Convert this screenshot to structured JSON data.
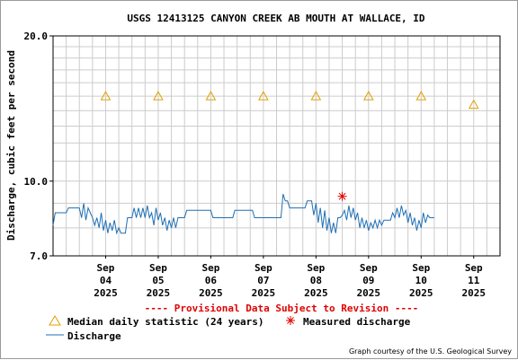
{
  "chart_data": {
    "type": "line",
    "title": "USGS 12413125 CANYON CREEK AB MOUTH AT WALLACE, ID",
    "ylabel": "Discharge, cubic feet per second",
    "xlabel": "",
    "yscale": "log",
    "ylim": [
      7.0,
      20.0
    ],
    "y_ticks": [
      "7.0",
      "10.0",
      "20.0"
    ],
    "xlim": [
      "2025-09-03T12:00",
      "2025-09-12T00:00"
    ],
    "x_ticks": [
      {
        "date": "2025-09-04",
        "lines": [
          "Sep",
          "04",
          "2025"
        ]
      },
      {
        "date": "2025-09-05",
        "lines": [
          "Sep",
          "05",
          "2025"
        ]
      },
      {
        "date": "2025-09-06",
        "lines": [
          "Sep",
          "06",
          "2025"
        ]
      },
      {
        "date": "2025-09-07",
        "lines": [
          "Sep",
          "07",
          "2025"
        ]
      },
      {
        "date": "2025-09-08",
        "lines": [
          "Sep",
          "08",
          "2025"
        ]
      },
      {
        "date": "2025-09-09",
        "lines": [
          "Sep",
          "09",
          "2025"
        ]
      },
      {
        "date": "2025-09-10",
        "lines": [
          "Sep",
          "10",
          "2025"
        ]
      },
      {
        "date": "2025-09-11",
        "lines": [
          "Sep",
          "11",
          "2025"
        ]
      }
    ],
    "grid": true,
    "legend_position": "bottom",
    "annotation": "---- Provisional Data Subject to Revision ----",
    "series": [
      {
        "name": "Median daily statistic (24 years)",
        "type": "scatter",
        "marker": "triangle",
        "color": "#e0a000",
        "points": [
          {
            "x": "2025-09-04T12:00",
            "y": 15.0
          },
          {
            "x": "2025-09-05T12:00",
            "y": 15.0
          },
          {
            "x": "2025-09-06T12:00",
            "y": 15.0
          },
          {
            "x": "2025-09-07T12:00",
            "y": 15.0
          },
          {
            "x": "2025-09-08T12:00",
            "y": 15.0
          },
          {
            "x": "2025-09-09T12:00",
            "y": 15.0
          },
          {
            "x": "2025-09-10T12:00",
            "y": 15.0
          },
          {
            "x": "2025-09-11T12:00",
            "y": 14.4
          }
        ]
      },
      {
        "name": "Measured discharge",
        "type": "scatter",
        "marker": "asterisk",
        "color": "#e00000",
        "points": [
          {
            "x": "2025-09-09T00:00",
            "y": 9.3
          }
        ]
      },
      {
        "name": "Discharge",
        "type": "line",
        "color": "#1f6fb5",
        "points": [
          {
            "x": "2025-09-03T12:00",
            "y": 8.1
          },
          {
            "x": "2025-09-03T13:00",
            "y": 8.6
          },
          {
            "x": "2025-09-03T18:00",
            "y": 8.6
          },
          {
            "x": "2025-09-03T19:00",
            "y": 8.8
          },
          {
            "x": "2025-09-04T00:00",
            "y": 8.8
          },
          {
            "x": "2025-09-04T01:00",
            "y": 8.4
          },
          {
            "x": "2025-09-04T02:00",
            "y": 9.0
          },
          {
            "x": "2025-09-04T03:00",
            "y": 8.3
          },
          {
            "x": "2025-09-04T04:00",
            "y": 8.8
          },
          {
            "x": "2025-09-04T05:00",
            "y": 8.6
          },
          {
            "x": "2025-09-04T06:00",
            "y": 8.4
          },
          {
            "x": "2025-09-04T07:00",
            "y": 8.1
          },
          {
            "x": "2025-09-04T08:00",
            "y": 8.4
          },
          {
            "x": "2025-09-04T09:00",
            "y": 8.0
          },
          {
            "x": "2025-09-04T10:00",
            "y": 8.6
          },
          {
            "x": "2025-09-04T11:00",
            "y": 7.9
          },
          {
            "x": "2025-09-04T12:00",
            "y": 8.3
          },
          {
            "x": "2025-09-04T13:00",
            "y": 7.8
          },
          {
            "x": "2025-09-04T14:00",
            "y": 8.2
          },
          {
            "x": "2025-09-04T15:00",
            "y": 7.9
          },
          {
            "x": "2025-09-04T16:00",
            "y": 8.3
          },
          {
            "x": "2025-09-04T17:00",
            "y": 7.8
          },
          {
            "x": "2025-09-04T18:00",
            "y": 8.0
          },
          {
            "x": "2025-09-04T19:00",
            "y": 7.8
          },
          {
            "x": "2025-09-04T21:00",
            "y": 7.8
          },
          {
            "x": "2025-09-04T22:00",
            "y": 8.4
          },
          {
            "x": "2025-09-05T00:00",
            "y": 8.4
          },
          {
            "x": "2025-09-05T01:00",
            "y": 8.8
          },
          {
            "x": "2025-09-05T02:00",
            "y": 8.4
          },
          {
            "x": "2025-09-05T03:00",
            "y": 8.8
          },
          {
            "x": "2025-09-05T04:00",
            "y": 8.4
          },
          {
            "x": "2025-09-05T05:00",
            "y": 8.8
          },
          {
            "x": "2025-09-05T06:00",
            "y": 8.4
          },
          {
            "x": "2025-09-05T07:00",
            "y": 8.9
          },
          {
            "x": "2025-09-05T08:00",
            "y": 8.4
          },
          {
            "x": "2025-09-05T09:00",
            "y": 8.6
          },
          {
            "x": "2025-09-05T10:00",
            "y": 8.1
          },
          {
            "x": "2025-09-05T11:00",
            "y": 8.8
          },
          {
            "x": "2025-09-05T12:00",
            "y": 8.3
          },
          {
            "x": "2025-09-05T13:00",
            "y": 8.6
          },
          {
            "x": "2025-09-05T14:00",
            "y": 8.1
          },
          {
            "x": "2025-09-05T15:00",
            "y": 8.4
          },
          {
            "x": "2025-09-05T16:00",
            "y": 7.9
          },
          {
            "x": "2025-09-05T17:00",
            "y": 8.3
          },
          {
            "x": "2025-09-05T18:00",
            "y": 8.0
          },
          {
            "x": "2025-09-05T19:00",
            "y": 8.4
          },
          {
            "x": "2025-09-05T20:00",
            "y": 8.0
          },
          {
            "x": "2025-09-05T21:00",
            "y": 8.4
          },
          {
            "x": "2025-09-06T00:00",
            "y": 8.4
          },
          {
            "x": "2025-09-06T01:00",
            "y": 8.7
          },
          {
            "x": "2025-09-06T12:00",
            "y": 8.7
          },
          {
            "x": "2025-09-06T13:00",
            "y": 8.4
          },
          {
            "x": "2025-09-06T22:00",
            "y": 8.4
          },
          {
            "x": "2025-09-06T23:00",
            "y": 8.7
          },
          {
            "x": "2025-09-07T07:00",
            "y": 8.7
          },
          {
            "x": "2025-09-07T08:00",
            "y": 8.4
          },
          {
            "x": "2025-09-07T20:00",
            "y": 8.4
          },
          {
            "x": "2025-09-07T21:00",
            "y": 9.4
          },
          {
            "x": "2025-09-07T22:00",
            "y": 9.1
          },
          {
            "x": "2025-09-07T23:00",
            "y": 9.1
          },
          {
            "x": "2025-09-08T00:00",
            "y": 8.8
          },
          {
            "x": "2025-09-08T07:00",
            "y": 8.8
          },
          {
            "x": "2025-09-08T08:00",
            "y": 9.1
          },
          {
            "x": "2025-09-08T10:00",
            "y": 9.1
          },
          {
            "x": "2025-09-08T11:00",
            "y": 8.5
          },
          {
            "x": "2025-09-08T12:00",
            "y": 9.0
          },
          {
            "x": "2025-09-08T13:00",
            "y": 8.2
          },
          {
            "x": "2025-09-08T14:00",
            "y": 8.8
          },
          {
            "x": "2025-09-08T15:00",
            "y": 8.0
          },
          {
            "x": "2025-09-08T16:00",
            "y": 8.7
          },
          {
            "x": "2025-09-08T17:00",
            "y": 7.9
          },
          {
            "x": "2025-09-08T18:00",
            "y": 8.4
          },
          {
            "x": "2025-09-08T19:00",
            "y": 7.8
          },
          {
            "x": "2025-09-08T20:00",
            "y": 8.2
          },
          {
            "x": "2025-09-08T21:00",
            "y": 7.8
          },
          {
            "x": "2025-09-08T22:00",
            "y": 8.4
          },
          {
            "x": "2025-09-08T23:00",
            "y": 8.4
          },
          {
            "x": "2025-09-09T00:00",
            "y": 8.5
          },
          {
            "x": "2025-09-09T01:00",
            "y": 8.7
          },
          {
            "x": "2025-09-09T02:00",
            "y": 8.3
          },
          {
            "x": "2025-09-09T03:00",
            "y": 8.9
          },
          {
            "x": "2025-09-09T04:00",
            "y": 8.4
          },
          {
            "x": "2025-09-09T05:00",
            "y": 8.8
          },
          {
            "x": "2025-09-09T06:00",
            "y": 8.3
          },
          {
            "x": "2025-09-09T07:00",
            "y": 8.6
          },
          {
            "x": "2025-09-09T08:00",
            "y": 8.0
          },
          {
            "x": "2025-09-09T09:00",
            "y": 8.4
          },
          {
            "x": "2025-09-09T10:00",
            "y": 8.0
          },
          {
            "x": "2025-09-09T11:00",
            "y": 8.3
          },
          {
            "x": "2025-09-09T12:00",
            "y": 7.9
          },
          {
            "x": "2025-09-09T13:00",
            "y": 8.2
          },
          {
            "x": "2025-09-09T14:00",
            "y": 8.0
          },
          {
            "x": "2025-09-09T15:00",
            "y": 8.3
          },
          {
            "x": "2025-09-09T16:00",
            "y": 8.0
          },
          {
            "x": "2025-09-09T17:00",
            "y": 8.3
          },
          {
            "x": "2025-09-09T18:00",
            "y": 8.1
          },
          {
            "x": "2025-09-09T19:00",
            "y": 8.3
          },
          {
            "x": "2025-09-09T22:00",
            "y": 8.3
          },
          {
            "x": "2025-09-09T23:00",
            "y": 8.6
          },
          {
            "x": "2025-09-10T00:00",
            "y": 8.4
          },
          {
            "x": "2025-09-10T01:00",
            "y": 8.8
          },
          {
            "x": "2025-09-10T02:00",
            "y": 8.4
          },
          {
            "x": "2025-09-10T03:00",
            "y": 8.9
          },
          {
            "x": "2025-09-10T04:00",
            "y": 8.5
          },
          {
            "x": "2025-09-10T05:00",
            "y": 8.7
          },
          {
            "x": "2025-09-10T06:00",
            "y": 8.2
          },
          {
            "x": "2025-09-10T07:00",
            "y": 8.6
          },
          {
            "x": "2025-09-10T08:00",
            "y": 8.1
          },
          {
            "x": "2025-09-10T09:00",
            "y": 8.4
          },
          {
            "x": "2025-09-10T10:00",
            "y": 7.9
          },
          {
            "x": "2025-09-10T11:00",
            "y": 8.3
          },
          {
            "x": "2025-09-10T12:00",
            "y": 8.0
          },
          {
            "x": "2025-09-10T13:00",
            "y": 8.6
          },
          {
            "x": "2025-09-10T14:00",
            "y": 8.2
          },
          {
            "x": "2025-09-10T15:00",
            "y": 8.5
          },
          {
            "x": "2025-09-10T16:00",
            "y": 8.4
          },
          {
            "x": "2025-09-10T18:00",
            "y": 8.4
          }
        ]
      }
    ]
  },
  "credit": "Graph courtesy of the U.S. Geological Survey"
}
